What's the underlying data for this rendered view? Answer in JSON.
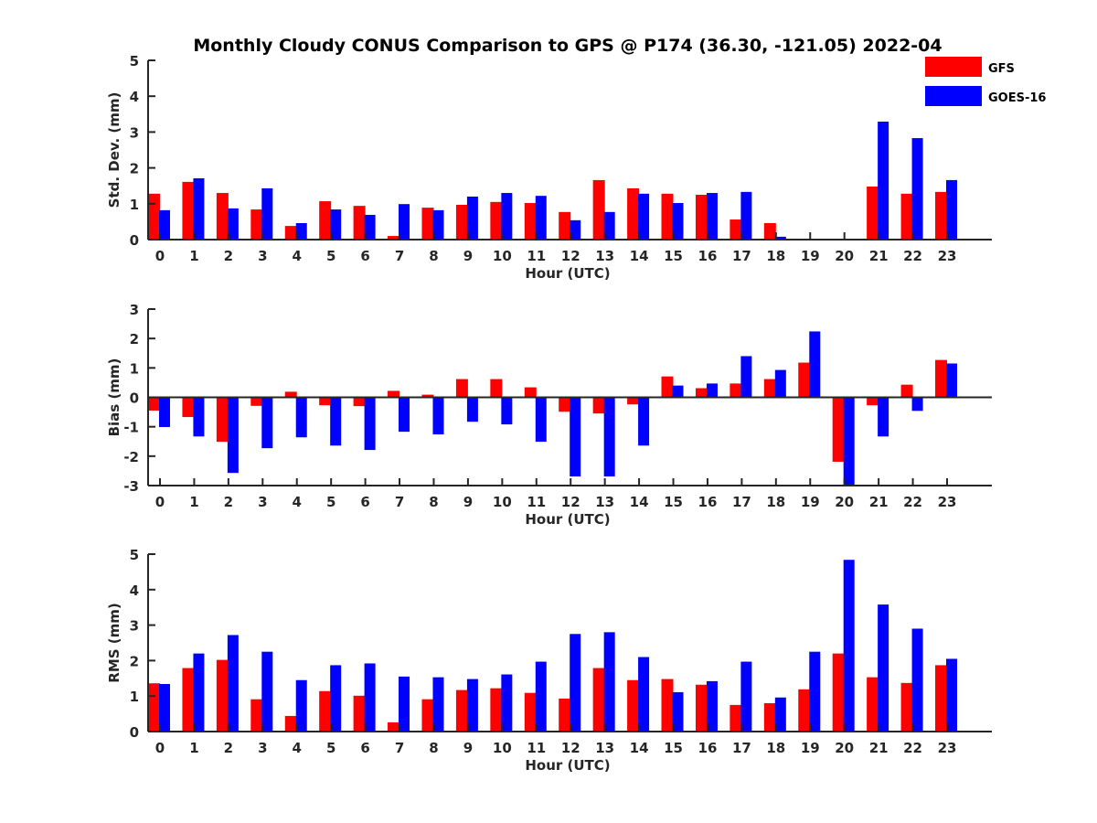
{
  "chart_data": {
    "title": "Monthly Cloudy CONUS Comparison to GPS @ P174 (36.30, -121.05) 2022-04",
    "legend": {
      "placement": "top-right",
      "entries": [
        {
          "name": "GFS",
          "color": "#ff0000"
        },
        {
          "name": "GOES-16",
          "color": "#0000ff"
        }
      ]
    },
    "categories": [
      "0",
      "1",
      "2",
      "3",
      "4",
      "5",
      "6",
      "7",
      "8",
      "9",
      "10",
      "11",
      "12",
      "13",
      "14",
      "15",
      "16",
      "17",
      "18",
      "19",
      "20",
      "21",
      "22",
      "23"
    ],
    "panels": [
      {
        "type": "bar",
        "ylabel": "Std. Dev. (mm)",
        "xlabel": "Hour (UTC)",
        "ylim": [
          0,
          5
        ],
        "yticks": [
          "0",
          "1",
          "2",
          "3",
          "4",
          "5"
        ],
        "ytick_values": [
          0,
          1,
          2,
          3,
          4,
          5
        ],
        "series": [
          {
            "name": "GFS",
            "values": [
              1.28,
              1.61,
              1.3,
              0.84,
              0.38,
              1.07,
              0.94,
              0.1,
              0.89,
              0.97,
              1.05,
              1.02,
              0.77,
              1.66,
              1.43,
              1.28,
              1.25,
              0.56,
              0.46,
              null,
              null,
              1.48,
              1.28,
              1.33
            ]
          },
          {
            "name": "GOES-16",
            "values": [
              0.82,
              1.71,
              0.87,
              1.43,
              0.46,
              0.84,
              0.69,
              0.99,
              0.82,
              1.2,
              1.3,
              1.22,
              0.54,
              0.77,
              1.28,
              1.02,
              1.3,
              1.33,
              0.08,
              null,
              null,
              3.29,
              2.83,
              1.66
            ]
          }
        ]
      },
      {
        "type": "bar",
        "ylabel": "Bias (mm)",
        "xlabel": "Hour (UTC)",
        "ylim": [
          -3,
          3
        ],
        "yticks": [
          "-3",
          "-2",
          "-1",
          "0",
          "1",
          "2",
          "3"
        ],
        "ytick_values": [
          -3,
          -2,
          -1,
          0,
          1,
          2,
          3
        ],
        "series": [
          {
            "name": "GFS",
            "values": [
              -0.45,
              -0.67,
              -1.51,
              -0.29,
              0.19,
              -0.27,
              -0.3,
              0.22,
              0.09,
              0.62,
              0.62,
              0.34,
              -0.49,
              -0.55,
              -0.24,
              0.71,
              0.31,
              0.47,
              0.62,
              1.18,
              -2.19,
              -0.27,
              0.43,
              1.27
            ]
          },
          {
            "name": "GOES-16",
            "values": [
              -1.01,
              -1.33,
              -2.57,
              -1.73,
              -1.36,
              -1.64,
              -1.79,
              -1.17,
              -1.26,
              -0.83,
              -0.92,
              -1.51,
              -2.69,
              -2.69,
              -1.64,
              0.4,
              0.47,
              1.4,
              0.93,
              2.24,
              -3.0,
              -1.33,
              -0.46,
              1.15
            ]
          }
        ]
      },
      {
        "type": "bar",
        "ylabel": "RMS (mm)",
        "xlabel": "Hour (UTC)",
        "ylim": [
          0,
          5
        ],
        "yticks": [
          "0",
          "1",
          "2",
          "3",
          "4",
          "5"
        ],
        "ytick_values": [
          0,
          1,
          2,
          3,
          4,
          5
        ],
        "series": [
          {
            "name": "GFS",
            "values": [
              1.36,
              1.79,
              2.02,
              0.91,
              0.44,
              1.14,
              1.01,
              0.26,
              0.91,
              1.17,
              1.22,
              1.09,
              0.93,
              1.79,
              1.45,
              1.48,
              1.32,
              0.75,
              0.8,
              1.19,
              2.2,
              1.53,
              1.37,
              1.87
            ]
          },
          {
            "name": "GOES-16",
            "values": [
              1.34,
              2.2,
              2.72,
              2.25,
              1.45,
              1.87,
              1.92,
              1.55,
              1.53,
              1.48,
              1.61,
              1.97,
              2.75,
              2.8,
              2.1,
              1.11,
              1.42,
              1.97,
              0.96,
              2.25,
              4.84,
              3.58,
              2.9,
              2.05
            ]
          }
        ]
      }
    ]
  }
}
